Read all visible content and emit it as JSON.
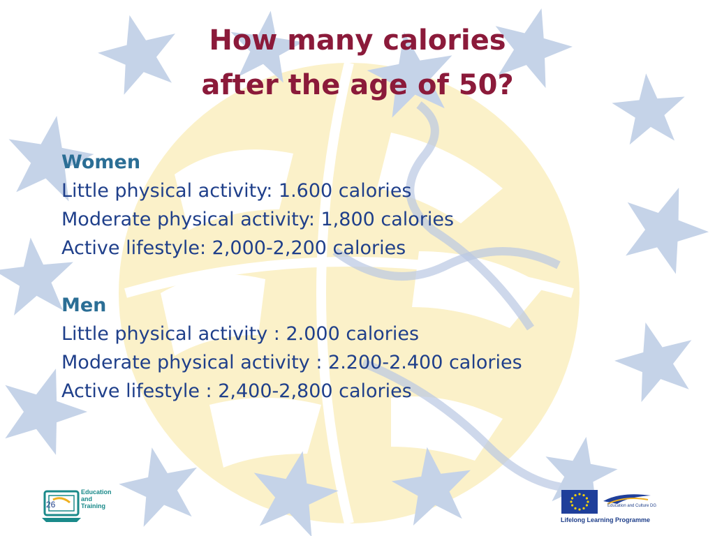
{
  "slide": {
    "title_line1": "How many calories",
    "title_line2": "after the age of 50?",
    "number": "26"
  },
  "women": {
    "heading": "Women",
    "lines": [
      "Little physical activity: 1.600 calories",
      "Moderate physical activity: 1,800 calories",
      "Active lifestyle: 2,000-2,200 calories"
    ]
  },
  "men": {
    "heading": "Men",
    "lines": [
      "Little physical activity : 2.000 calories",
      "Moderate physical activity : 2.200-2.400 calories",
      "Active lifestyle : 2,400-2,800 calories"
    ]
  },
  "footer": {
    "education_training_logo": [
      "Education",
      "and",
      "Training"
    ],
    "eu_dg_label": "Education and Culture DG",
    "programme_label": "Lifelong Learning Programme"
  },
  "colors": {
    "title": "#8b1a3a",
    "heading": "#2b6e95",
    "body_text": "#1f3f8a",
    "star": "#c5d3e8",
    "globe": "#fbf1c9"
  },
  "icons": {
    "background": "star-icon",
    "globe": "globe-icon",
    "logo_left": "education-training-logo",
    "logo_right": "eu-flag-icon"
  }
}
